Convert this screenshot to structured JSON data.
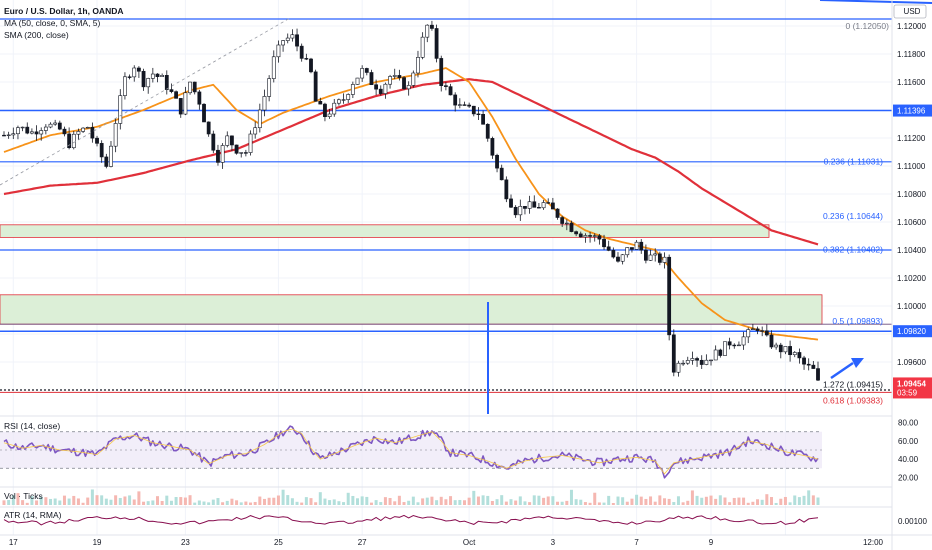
{
  "header": {
    "symbol_line": "Euro / U.S. Dollar, 1h, OANDA",
    "ma_line": "MA (50, close, 0, SMA, 5)",
    "sma_line": "SMA (200, close)"
  },
  "price_axis": {
    "currency": "USD",
    "ticks": [
      "1.12000",
      "1.11800",
      "1.11600",
      "1.11400",
      "1.11200",
      "1.11000",
      "1.10800",
      "1.10600",
      "1.10400",
      "1.10200",
      "1.10000",
      "1.09800",
      "1.09600"
    ],
    "current_price": "1.09454",
    "countdown": "03:59",
    "level_marker": "1.11396",
    "level_marker2": "1.09820"
  },
  "time_axis": {
    "ticks": [
      "17",
      "19",
      "23",
      "25",
      "27",
      "Oct",
      "3",
      "7",
      "9",
      "12:00"
    ]
  },
  "fib_labels": {
    "f0": "0 (1.12050)",
    "f236a": "0.236 (1.11031)",
    "f236b": "0.236 (1.10644)",
    "f382": "0.382 (1.10402)",
    "f05": "0.5 (1.09893)",
    "f1272": "1.272 (1.09415)",
    "f618": "0.618 (1.09383)"
  },
  "rsi": {
    "label": "RSI (14, close)",
    "ticks": [
      "80.00",
      "60.00",
      "40.00",
      "20.00"
    ]
  },
  "volume": {
    "label": "Vol · Ticks"
  },
  "atr": {
    "label": "ATR (14, RMA)",
    "tick": "0.00100"
  },
  "colors": {
    "up": "#26a69a",
    "down": "#131722",
    "ma50": "#f7931a",
    "sma200": "#e0303a",
    "hline": "#2962ff",
    "rsi": "#7e57c2",
    "zone": "#dcefd7",
    "price_badge": "#f23645"
  },
  "chart_data": {
    "type": "candlestick",
    "title": "Euro / U.S. Dollar, 1h, OANDA",
    "xlabel": "",
    "ylabel": "USD",
    "ylim": [
      1.093,
      1.1215
    ],
    "x_ticks": [
      "17",
      "19",
      "23",
      "25",
      "27",
      "Oct",
      "3",
      "7",
      "9",
      "12:00"
    ],
    "price_path": [
      [
        0,
        1.1122
      ],
      [
        3,
        1.1128
      ],
      [
        6,
        1.1124
      ],
      [
        9,
        1.113
      ],
      [
        12,
        1.1126
      ],
      [
        14,
        1.1116
      ],
      [
        16,
        1.1124
      ],
      [
        18,
        1.1128
      ],
      [
        20,
        1.1113
      ],
      [
        22,
        1.11
      ],
      [
        24,
        1.1132
      ],
      [
        26,
        1.1162
      ],
      [
        28,
        1.1172
      ],
      [
        30,
        1.116
      ],
      [
        32,
        1.1166
      ],
      [
        34,
        1.1162
      ],
      [
        36,
        1.1152
      ],
      [
        38,
        1.114
      ],
      [
        40,
        1.116
      ],
      [
        42,
        1.1146
      ],
      [
        44,
        1.1122
      ],
      [
        46,
        1.1106
      ],
      [
        48,
        1.112
      ],
      [
        50,
        1.1112
      ],
      [
        52,
        1.111
      ],
      [
        54,
        1.113
      ],
      [
        56,
        1.115
      ],
      [
        58,
        1.1176
      ],
      [
        60,
        1.119
      ],
      [
        62,
        1.1192
      ],
      [
        64,
        1.118
      ],
      [
        66,
        1.1166
      ],
      [
        67,
        1.1146
      ],
      [
        69,
        1.1136
      ],
      [
        71,
        1.1142
      ],
      [
        73,
        1.1148
      ],
      [
        75,
        1.116
      ],
      [
        77,
        1.1168
      ],
      [
        79,
        1.116
      ],
      [
        81,
        1.1155
      ],
      [
        83,
        1.1164
      ],
      [
        85,
        1.116
      ],
      [
        87,
        1.1156
      ],
      [
        89,
        1.118
      ],
      [
        91,
        1.12
      ],
      [
        92,
        1.1195
      ],
      [
        93,
        1.1178
      ],
      [
        94,
        1.116
      ],
      [
        96,
        1.115
      ],
      [
        98,
        1.1142
      ],
      [
        100,
        1.114
      ],
      [
        102,
        1.1138
      ],
      [
        104,
        1.112
      ],
      [
        106,
        1.1098
      ],
      [
        108,
        1.108
      ],
      [
        110,
        1.1068
      ],
      [
        112,
        1.1072
      ],
      [
        114,
        1.107
      ],
      [
        116,
        1.1073
      ],
      [
        118,
        1.1068
      ],
      [
        120,
        1.1062
      ],
      [
        122,
        1.1056
      ],
      [
        124,
        1.1052
      ],
      [
        126,
        1.105
      ],
      [
        128,
        1.1048
      ],
      [
        130,
        1.104
      ],
      [
        132,
        1.103
      ],
      [
        134,
        1.104
      ],
      [
        136,
        1.1044
      ],
      [
        138,
        1.1036
      ],
      [
        140,
        1.1034
      ],
      [
        142,
        1.1032
      ],
      [
        143,
        1.098
      ],
      [
        144,
        1.0955
      ],
      [
        146,
        1.0962
      ],
      [
        148,
        1.0966
      ],
      [
        150,
        1.096
      ],
      [
        152,
        1.0964
      ],
      [
        154,
        1.0968
      ],
      [
        156,
        1.0974
      ],
      [
        158,
        1.0975
      ],
      [
        160,
        1.098
      ],
      [
        162,
        1.0985
      ],
      [
        164,
        1.0976
      ],
      [
        166,
        1.097
      ],
      [
        168,
        1.0968
      ],
      [
        170,
        1.0965
      ],
      [
        172,
        1.0958
      ],
      [
        174,
        1.0954
      ],
      [
        175,
        1.0945
      ]
    ],
    "ma50_path": [
      [
        0,
        1.111
      ],
      [
        10,
        1.1122
      ],
      [
        20,
        1.1128
      ],
      [
        30,
        1.114
      ],
      [
        40,
        1.1154
      ],
      [
        45,
        1.1158
      ],
      [
        50,
        1.114
      ],
      [
        55,
        1.113
      ],
      [
        60,
        1.1138
      ],
      [
        70,
        1.115
      ],
      [
        80,
        1.116
      ],
      [
        90,
        1.1166
      ],
      [
        95,
        1.117
      ],
      [
        100,
        1.116
      ],
      [
        105,
        1.1135
      ],
      [
        110,
        1.1105
      ],
      [
        115,
        1.108
      ],
      [
        120,
        1.1064
      ],
      [
        125,
        1.1054
      ],
      [
        130,
        1.1048
      ],
      [
        135,
        1.1044
      ],
      [
        140,
        1.104
      ],
      [
        145,
        1.102
      ],
      [
        150,
        1.1002
      ],
      [
        155,
        1.099
      ],
      [
        160,
        1.0985
      ],
      [
        165,
        1.098
      ],
      [
        170,
        1.0978
      ],
      [
        175,
        1.0976
      ]
    ],
    "sma200_path": [
      [
        0,
        1.108
      ],
      [
        10,
        1.1086
      ],
      [
        20,
        1.1088
      ],
      [
        30,
        1.1095
      ],
      [
        40,
        1.1104
      ],
      [
        50,
        1.1112
      ],
      [
        60,
        1.1126
      ],
      [
        70,
        1.114
      ],
      [
        80,
        1.115
      ],
      [
        90,
        1.1158
      ],
      [
        100,
        1.1162
      ],
      [
        105,
        1.116
      ],
      [
        110,
        1.1152
      ],
      [
        115,
        1.1144
      ],
      [
        120,
        1.1136
      ],
      [
        125,
        1.1128
      ],
      [
        130,
        1.112
      ],
      [
        135,
        1.1112
      ],
      [
        140,
        1.1106
      ],
      [
        145,
        1.1096
      ],
      [
        150,
        1.1084
      ],
      [
        155,
        1.1074
      ],
      [
        160,
        1.1064
      ],
      [
        165,
        1.1054
      ],
      [
        175,
        1.1044
      ]
    ],
    "horizontal_levels": [
      1.1205,
      1.11396,
      1.1103,
      1.104,
      1.0982
    ],
    "fib_levels": [
      1.1205,
      1.11031,
      1.10644,
      1.10402,
      1.09893,
      1.09415,
      1.09383
    ],
    "current_price": 1.09454,
    "rsi_ylim": [
      15,
      85
    ],
    "rsi_bands": [
      70,
      30
    ],
    "rsi_path": [
      [
        0,
        58
      ],
      [
        4,
        52
      ],
      [
        8,
        55
      ],
      [
        12,
        50
      ],
      [
        16,
        48
      ],
      [
        20,
        45
      ],
      [
        24,
        62
      ],
      [
        28,
        66
      ],
      [
        32,
        58
      ],
      [
        36,
        54
      ],
      [
        40,
        50
      ],
      [
        44,
        35
      ],
      [
        48,
        44
      ],
      [
        52,
        46
      ],
      [
        56,
        56
      ],
      [
        60,
        70
      ],
      [
        62,
        73
      ],
      [
        64,
        68
      ],
      [
        66,
        52
      ],
      [
        68,
        40
      ],
      [
        72,
        48
      ],
      [
        76,
        56
      ],
      [
        80,
        63
      ],
      [
        84,
        58
      ],
      [
        88,
        64
      ],
      [
        92,
        70
      ],
      [
        94,
        60
      ],
      [
        96,
        47
      ],
      [
        100,
        44
      ],
      [
        104,
        38
      ],
      [
        108,
        30
      ],
      [
        112,
        38
      ],
      [
        116,
        42
      ],
      [
        120,
        44
      ],
      [
        124,
        40
      ],
      [
        128,
        36
      ],
      [
        132,
        40
      ],
      [
        136,
        42
      ],
      [
        140,
        38
      ],
      [
        142,
        24
      ],
      [
        144,
        36
      ],
      [
        148,
        40
      ],
      [
        152,
        44
      ],
      [
        156,
        48
      ],
      [
        160,
        60
      ],
      [
        164,
        56
      ],
      [
        168,
        48
      ],
      [
        172,
        44
      ],
      [
        175,
        40
      ]
    ]
  }
}
